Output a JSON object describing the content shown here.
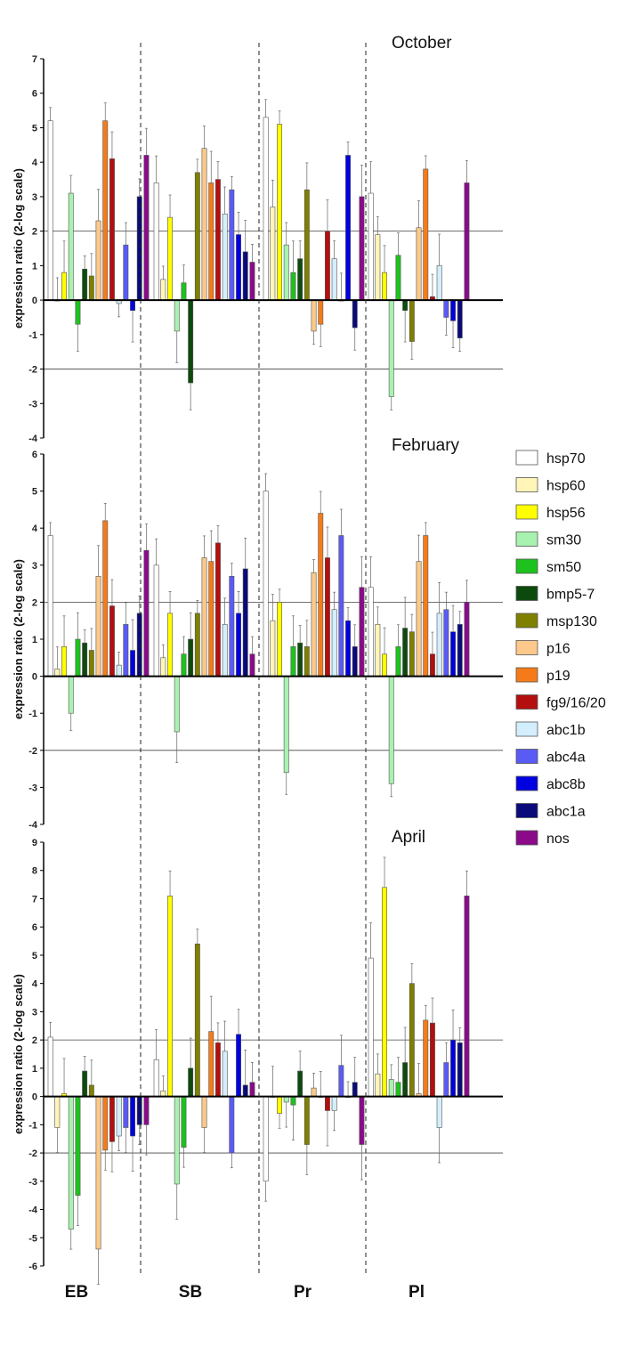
{
  "figure": {
    "ylabel": "expression ratio (2-log scale)",
    "sites": [
      "EB",
      "SB",
      "Pr",
      "Pl"
    ]
  },
  "legend": {
    "entries": [
      {
        "name": "hsp70",
        "color": "#ffffff"
      },
      {
        "name": "hsp60",
        "color": "#fff5b8"
      },
      {
        "name": "hsp56",
        "color": "#ffff00"
      },
      {
        "name": "sm30",
        "color": "#a8f2b0"
      },
      {
        "name": "sm50",
        "color": "#1ec21e"
      },
      {
        "name": "bmp5-7",
        "color": "#0d4a0d"
      },
      {
        "name": "msp130",
        "color": "#7f7f00"
      },
      {
        "name": "p16",
        "color": "#fcc98a"
      },
      {
        "name": "p19",
        "color": "#f57b18"
      },
      {
        "name": "fg9/16/20",
        "color": "#b30f0f"
      },
      {
        "name": "abc1b",
        "color": "#d3eefc"
      },
      {
        "name": "abc4a",
        "color": "#5a5af5"
      },
      {
        "name": "abc8b",
        "color": "#0000e0"
      },
      {
        "name": "abc1a",
        "color": "#0a0a7a"
      },
      {
        "name": "nos",
        "color": "#8a0a8a"
      }
    ]
  },
  "chart_data": [
    {
      "type": "bar",
      "title": "October",
      "ylabel": "expression ratio (2-log scale)",
      "ylim": [
        -4,
        7
      ],
      "yticks": [
        "7",
        "6",
        "5",
        "4",
        "3",
        "2",
        "1",
        "0",
        "-1",
        "-2",
        "-3",
        "-4"
      ],
      "reference_lines": [
        2,
        -2
      ],
      "categories": [
        "EB",
        "SB",
        "Pr",
        "Pl"
      ],
      "series": [
        {
          "name": "hsp70",
          "values": [
            5.2,
            3.4,
            5.3,
            3.1
          ]
        },
        {
          "name": "hsp60",
          "values": [
            0.0,
            0.6,
            2.7,
            1.9
          ]
        },
        {
          "name": "hsp56",
          "values": [
            0.8,
            2.4,
            5.1,
            0.8
          ]
        },
        {
          "name": "sm30",
          "values": [
            3.1,
            -0.9,
            1.6,
            -2.8
          ]
        },
        {
          "name": "sm50",
          "values": [
            -0.7,
            0.5,
            0.8,
            1.3
          ]
        },
        {
          "name": "bmp5-7",
          "values": [
            0.9,
            -2.4,
            1.2,
            -0.3
          ]
        },
        {
          "name": "msp130",
          "values": [
            0.7,
            3.7,
            3.2,
            -1.2
          ]
        },
        {
          "name": "p16",
          "values": [
            2.3,
            4.4,
            -0.9,
            2.1
          ]
        },
        {
          "name": "p19",
          "values": [
            5.2,
            3.4,
            -0.7,
            3.8
          ]
        },
        {
          "name": "fg9/16/20",
          "values": [
            4.1,
            3.5,
            2.0,
            0.1
          ]
        },
        {
          "name": "abc1b",
          "values": [
            -0.1,
            2.5,
            1.2,
            1.0
          ]
        },
        {
          "name": "abc4a",
          "values": [
            1.6,
            3.2,
            0.0,
            -0.5
          ]
        },
        {
          "name": "abc8b",
          "values": [
            -0.3,
            1.9,
            4.2,
            -0.6
          ]
        },
        {
          "name": "abc1a",
          "values": [
            3.0,
            1.4,
            -0.8,
            -1.1
          ]
        },
        {
          "name": "nos",
          "values": [
            4.2,
            1.1,
            3.0,
            3.4
          ]
        }
      ]
    },
    {
      "type": "bar",
      "title": "February",
      "ylabel": "expression ratio (2-log scale)",
      "ylim": [
        -4,
        6
      ],
      "yticks": [
        "6",
        "5",
        "4",
        "3",
        "2",
        "1",
        "0",
        "-1",
        "-2",
        "-3",
        "-4"
      ],
      "reference_lines": [
        2,
        -2
      ],
      "categories": [
        "EB",
        "SB",
        "Pr",
        "Pl"
      ],
      "series": [
        {
          "name": "hsp70",
          "values": [
            3.8,
            3.0,
            5.0,
            2.4
          ]
        },
        {
          "name": "hsp60",
          "values": [
            0.2,
            0.5,
            1.5,
            1.4
          ]
        },
        {
          "name": "hsp56",
          "values": [
            0.8,
            1.7,
            2.0,
            0.6
          ]
        },
        {
          "name": "sm30",
          "values": [
            -1.0,
            -1.5,
            -2.6,
            -2.9
          ]
        },
        {
          "name": "sm50",
          "values": [
            1.0,
            0.6,
            0.8,
            0.8
          ]
        },
        {
          "name": "bmp5-7",
          "values": [
            0.9,
            1.0,
            0.9,
            1.3
          ]
        },
        {
          "name": "msp130",
          "values": [
            0.7,
            1.7,
            0.8,
            1.2
          ]
        },
        {
          "name": "p16",
          "values": [
            2.7,
            3.2,
            2.8,
            3.1
          ]
        },
        {
          "name": "p19",
          "values": [
            4.2,
            3.1,
            4.4,
            3.8
          ]
        },
        {
          "name": "fg9/16/20",
          "values": [
            1.9,
            3.6,
            3.2,
            0.6
          ]
        },
        {
          "name": "abc1b",
          "values": [
            0.3,
            1.4,
            1.8,
            1.7
          ]
        },
        {
          "name": "abc4a",
          "values": [
            1.4,
            2.7,
            3.8,
            1.8
          ]
        },
        {
          "name": "abc8b",
          "values": [
            0.7,
            1.7,
            1.5,
            1.2
          ]
        },
        {
          "name": "abc1a",
          "values": [
            1.7,
            2.9,
            0.8,
            1.4
          ]
        },
        {
          "name": "nos",
          "values": [
            3.4,
            0.6,
            2.4,
            2.0
          ]
        }
      ]
    },
    {
      "type": "bar",
      "title": "April",
      "ylabel": "expression ratio (2-log scale)",
      "ylim": [
        -6,
        9
      ],
      "yticks": [
        "9",
        "8",
        "7",
        "6",
        "5",
        "4",
        "3",
        "2",
        "1",
        "0",
        "-1",
        "-2",
        "-3",
        "-4",
        "-5",
        "-6"
      ],
      "reference_lines": [
        2,
        -2
      ],
      "categories": [
        "EB",
        "SB",
        "Pr",
        "Pl"
      ],
      "series": [
        {
          "name": "hsp70",
          "values": [
            2.1,
            1.3,
            -3.0,
            4.9
          ]
        },
        {
          "name": "hsp60",
          "values": [
            -1.1,
            0.2,
            0.0,
            0.8
          ]
        },
        {
          "name": "hsp56",
          "values": [
            0.1,
            7.1,
            -0.6,
            7.4
          ]
        },
        {
          "name": "sm30",
          "values": [
            -4.7,
            -3.1,
            -0.2,
            0.6
          ]
        },
        {
          "name": "sm50",
          "values": [
            -3.5,
            -1.8,
            -0.3,
            0.5
          ]
        },
        {
          "name": "bmp5-7",
          "values": [
            0.9,
            1.0,
            0.9,
            1.2
          ]
        },
        {
          "name": "msp130",
          "values": [
            0.4,
            5.4,
            -1.7,
            4.0
          ]
        },
        {
          "name": "p16",
          "values": [
            -5.4,
            -1.1,
            0.3,
            0.1
          ]
        },
        {
          "name": "p19",
          "values": [
            -1.9,
            2.3,
            0.0,
            2.7
          ]
        },
        {
          "name": "fg9/16/20",
          "values": [
            -1.6,
            1.9,
            -0.5,
            2.6
          ]
        },
        {
          "name": "abc1b",
          "values": [
            -1.4,
            1.6,
            -0.5,
            -1.1
          ]
        },
        {
          "name": "abc4a",
          "values": [
            -1.1,
            -2.0,
            1.1,
            1.2
          ]
        },
        {
          "name": "abc8b",
          "values": [
            -1.4,
            2.2,
            0.0,
            2.0
          ]
        },
        {
          "name": "abc1a",
          "values": [
            -1.0,
            0.4,
            0.5,
            1.9
          ]
        },
        {
          "name": "nos",
          "values": [
            -1.0,
            0.5,
            -1.7,
            7.1
          ]
        }
      ]
    }
  ]
}
